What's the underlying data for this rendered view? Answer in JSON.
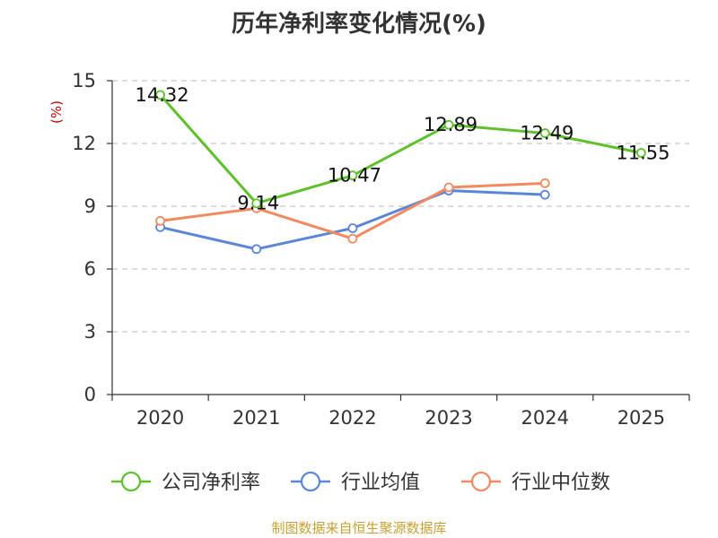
{
  "chart_data": {
    "type": "line",
    "title": "历年净利率变化情况(%)",
    "ylabel": "(%)",
    "xlabel": "",
    "categories": [
      "2020",
      "2021",
      "2022",
      "2023",
      "2024",
      "2025"
    ],
    "ylim": [
      0,
      15
    ],
    "yticks": [
      0,
      3,
      6,
      9,
      12,
      15
    ],
    "grid": "horizontal-dashed",
    "legend_position": "bottom",
    "series": [
      {
        "name": "公司净利率",
        "color": "#5ec12a",
        "values": [
          14.32,
          9.14,
          10.47,
          12.89,
          12.49,
          11.55
        ],
        "labels": [
          "14.32",
          "9.14",
          "10.47",
          "12.89",
          "12.49",
          "11.55"
        ]
      },
      {
        "name": "行业均值",
        "color": "#5a86d8",
        "values": [
          8.0,
          6.95,
          7.95,
          9.75,
          9.55,
          null
        ]
      },
      {
        "name": "行业中位数",
        "color": "#f4895f",
        "values": [
          8.3,
          8.9,
          7.45,
          9.9,
          10.1,
          null
        ]
      }
    ]
  },
  "source_text": "制图数据来自恒生聚源数据库"
}
